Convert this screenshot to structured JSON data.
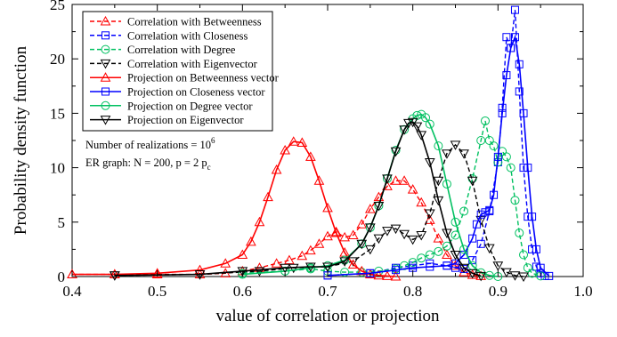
{
  "chart_data": {
    "type": "line",
    "xlabel": "value of correlation or projection",
    "ylabel": "Probability density function",
    "xlim": [
      0.4,
      1.0
    ],
    "ylim": [
      0,
      25
    ],
    "xticks": [
      0.4,
      0.5,
      0.6,
      0.7,
      0.8,
      0.9,
      1.0
    ],
    "xtick_labels": [
      "0.4",
      "0.5",
      "0.6",
      "0.7",
      "0.8",
      "0.9",
      "1.0"
    ],
    "yticks": [
      0,
      5,
      10,
      15,
      20,
      25
    ],
    "ytick_labels": [
      "0",
      "5",
      "10",
      "15",
      "20",
      "25"
    ],
    "grid": false,
    "legend_position": "top-left",
    "annotations": [
      {
        "text": "Number of realizations = 10",
        "sup": "6"
      },
      {
        "text": "ER graph: N = 200, p = 2 p",
        "sub": "c"
      }
    ],
    "series": [
      {
        "name": "Correlation with Betweenness",
        "color": "#ff0000",
        "dash": "dashed",
        "marker": "triangle-up",
        "x": [
          0.4,
          0.45,
          0.5,
          0.55,
          0.58,
          0.6,
          0.62,
          0.64,
          0.655,
          0.67,
          0.68,
          0.69,
          0.7,
          0.71,
          0.72,
          0.73,
          0.74,
          0.75,
          0.76,
          0.77,
          0.78,
          0.79,
          0.8,
          0.81,
          0.82,
          0.83,
          0.84,
          0.85,
          0.86,
          0.87,
          0.88
        ],
        "y": [
          0.2,
          0.2,
          0.2,
          0.2,
          0.3,
          0.5,
          0.8,
          1.2,
          1.5,
          1.9,
          2.4,
          3.0,
          3.7,
          4.1,
          3.6,
          3.8,
          4.8,
          6.2,
          7.3,
          8.3,
          8.8,
          8.8,
          8.0,
          6.8,
          5.2,
          3.5,
          2.0,
          1.0,
          0.4,
          0.15,
          0.05
        ]
      },
      {
        "name": "Correlation with Closeness",
        "color": "#0000ff",
        "dash": "dashed",
        "marker": "square",
        "x": [
          0.7,
          0.75,
          0.78,
          0.8,
          0.82,
          0.84,
          0.85,
          0.86,
          0.87,
          0.88,
          0.89,
          0.9,
          0.905,
          0.91,
          0.915,
          0.92,
          0.925,
          0.93,
          0.935,
          0.94,
          0.945,
          0.95,
          0.955
        ],
        "y": [
          0.1,
          0.3,
          0.8,
          1.0,
          1.2,
          1.0,
          0.8,
          0.7,
          1.5,
          3.0,
          6.0,
          10.5,
          15.5,
          22.0,
          21.0,
          24.5,
          17.0,
          10.0,
          5.5,
          2.5,
          0.9,
          0.3,
          0.05
        ]
      },
      {
        "name": "Correlation with Degree",
        "color": "#00c060",
        "dash": "dashed",
        "marker": "circle",
        "x": [
          0.6,
          0.65,
          0.68,
          0.7,
          0.72,
          0.74,
          0.76,
          0.78,
          0.79,
          0.8,
          0.81,
          0.82,
          0.83,
          0.84,
          0.85,
          0.86,
          0.87,
          0.88,
          0.885,
          0.89,
          0.895,
          0.9,
          0.905,
          0.91,
          0.915,
          0.92,
          0.925,
          0.93,
          0.935,
          0.94,
          0.95
        ],
        "y": [
          0.3,
          0.5,
          0.7,
          0.5,
          0.4,
          0.4,
          0.5,
          0.7,
          1.0,
          1.3,
          1.7,
          2.0,
          2.3,
          2.8,
          3.8,
          6.0,
          9.0,
          12.5,
          14.3,
          12.5,
          12.0,
          10.5,
          11.5,
          11.0,
          10.0,
          7.0,
          4.0,
          2.0,
          0.8,
          0.3,
          0.05
        ]
      },
      {
        "name": "Correlation with Eigenvector",
        "color": "#000000",
        "dash": "dashed",
        "marker": "triangle-down",
        "x": [
          0.45,
          0.55,
          0.62,
          0.66,
          0.7,
          0.73,
          0.75,
          0.76,
          0.77,
          0.78,
          0.79,
          0.8,
          0.81,
          0.82,
          0.83,
          0.84,
          0.85,
          0.86,
          0.87,
          0.88,
          0.89,
          0.9,
          0.91,
          0.92,
          0.93
        ],
        "y": [
          0.1,
          0.2,
          0.5,
          0.8,
          0.9,
          1.4,
          2.5,
          3.5,
          4.2,
          4.4,
          3.9,
          3.4,
          3.8,
          5.8,
          8.8,
          11.3,
          12.1,
          11.3,
          8.8,
          5.2,
          2.6,
          1.0,
          0.4,
          0.1,
          0.0
        ]
      },
      {
        "name": "Projection on Betweenness vector",
        "color": "#ff0000",
        "dash": "solid",
        "marker": "triangle-up",
        "x": [
          0.4,
          0.45,
          0.5,
          0.55,
          0.58,
          0.6,
          0.61,
          0.62,
          0.63,
          0.64,
          0.65,
          0.66,
          0.67,
          0.68,
          0.69,
          0.7,
          0.71,
          0.72,
          0.73,
          0.74,
          0.75,
          0.76,
          0.77,
          0.78
        ],
        "y": [
          0.2,
          0.2,
          0.3,
          0.6,
          1.2,
          2.0,
          3.2,
          5.0,
          7.3,
          9.8,
          11.6,
          12.4,
          12.3,
          11.0,
          8.8,
          6.3,
          4.0,
          2.2,
          1.1,
          0.5,
          0.2,
          0.1,
          0.05,
          0.0
        ]
      },
      {
        "name": "Projection on Closeness vector",
        "color": "#0000ff",
        "dash": "solid",
        "marker": "square",
        "x": [
          0.7,
          0.75,
          0.78,
          0.8,
          0.82,
          0.84,
          0.85,
          0.86,
          0.87,
          0.875,
          0.88,
          0.885,
          0.89,
          0.895,
          0.9,
          0.905,
          0.91,
          0.915,
          0.92,
          0.925,
          0.93,
          0.935,
          0.94,
          0.945,
          0.95,
          0.96
        ],
        "y": [
          0.1,
          0.3,
          0.6,
          0.8,
          0.9,
          1.0,
          1.2,
          2.0,
          3.5,
          4.8,
          5.7,
          5.9,
          6.1,
          7.5,
          11.0,
          15.0,
          18.5,
          21.0,
          22.0,
          19.5,
          15.0,
          10.0,
          5.5,
          2.5,
          0.8,
          0.05
        ]
      },
      {
        "name": "Projection on Degree vector",
        "color": "#00c060",
        "dash": "solid",
        "marker": "circle",
        "x": [
          0.6,
          0.65,
          0.68,
          0.7,
          0.72,
          0.74,
          0.75,
          0.76,
          0.77,
          0.78,
          0.79,
          0.8,
          0.805,
          0.81,
          0.815,
          0.82,
          0.83,
          0.84,
          0.85,
          0.86,
          0.87,
          0.88,
          0.89,
          0.9
        ],
        "y": [
          0.2,
          0.5,
          0.8,
          1.0,
          1.5,
          3.0,
          4.5,
          6.5,
          9.0,
          11.6,
          13.5,
          14.5,
          14.8,
          14.9,
          14.6,
          14.0,
          12.0,
          8.5,
          5.0,
          2.5,
          1.0,
          0.35,
          0.1,
          0.0
        ]
      },
      {
        "name": "Projection on Eigenvector",
        "color": "#000000",
        "dash": "solid",
        "marker": "triangle-down",
        "x": [
          0.45,
          0.55,
          0.6,
          0.65,
          0.68,
          0.7,
          0.72,
          0.74,
          0.75,
          0.76,
          0.77,
          0.78,
          0.79,
          0.795,
          0.8,
          0.805,
          0.81,
          0.82,
          0.83,
          0.84,
          0.85,
          0.86,
          0.87,
          0.88
        ],
        "y": [
          0.1,
          0.2,
          0.5,
          0.8,
          0.9,
          0.9,
          1.4,
          3.0,
          4.5,
          6.5,
          9.0,
          11.5,
          13.5,
          14.1,
          14.2,
          13.8,
          13.0,
          10.5,
          7.0,
          4.0,
          2.0,
          0.8,
          0.3,
          0.05
        ]
      }
    ]
  }
}
